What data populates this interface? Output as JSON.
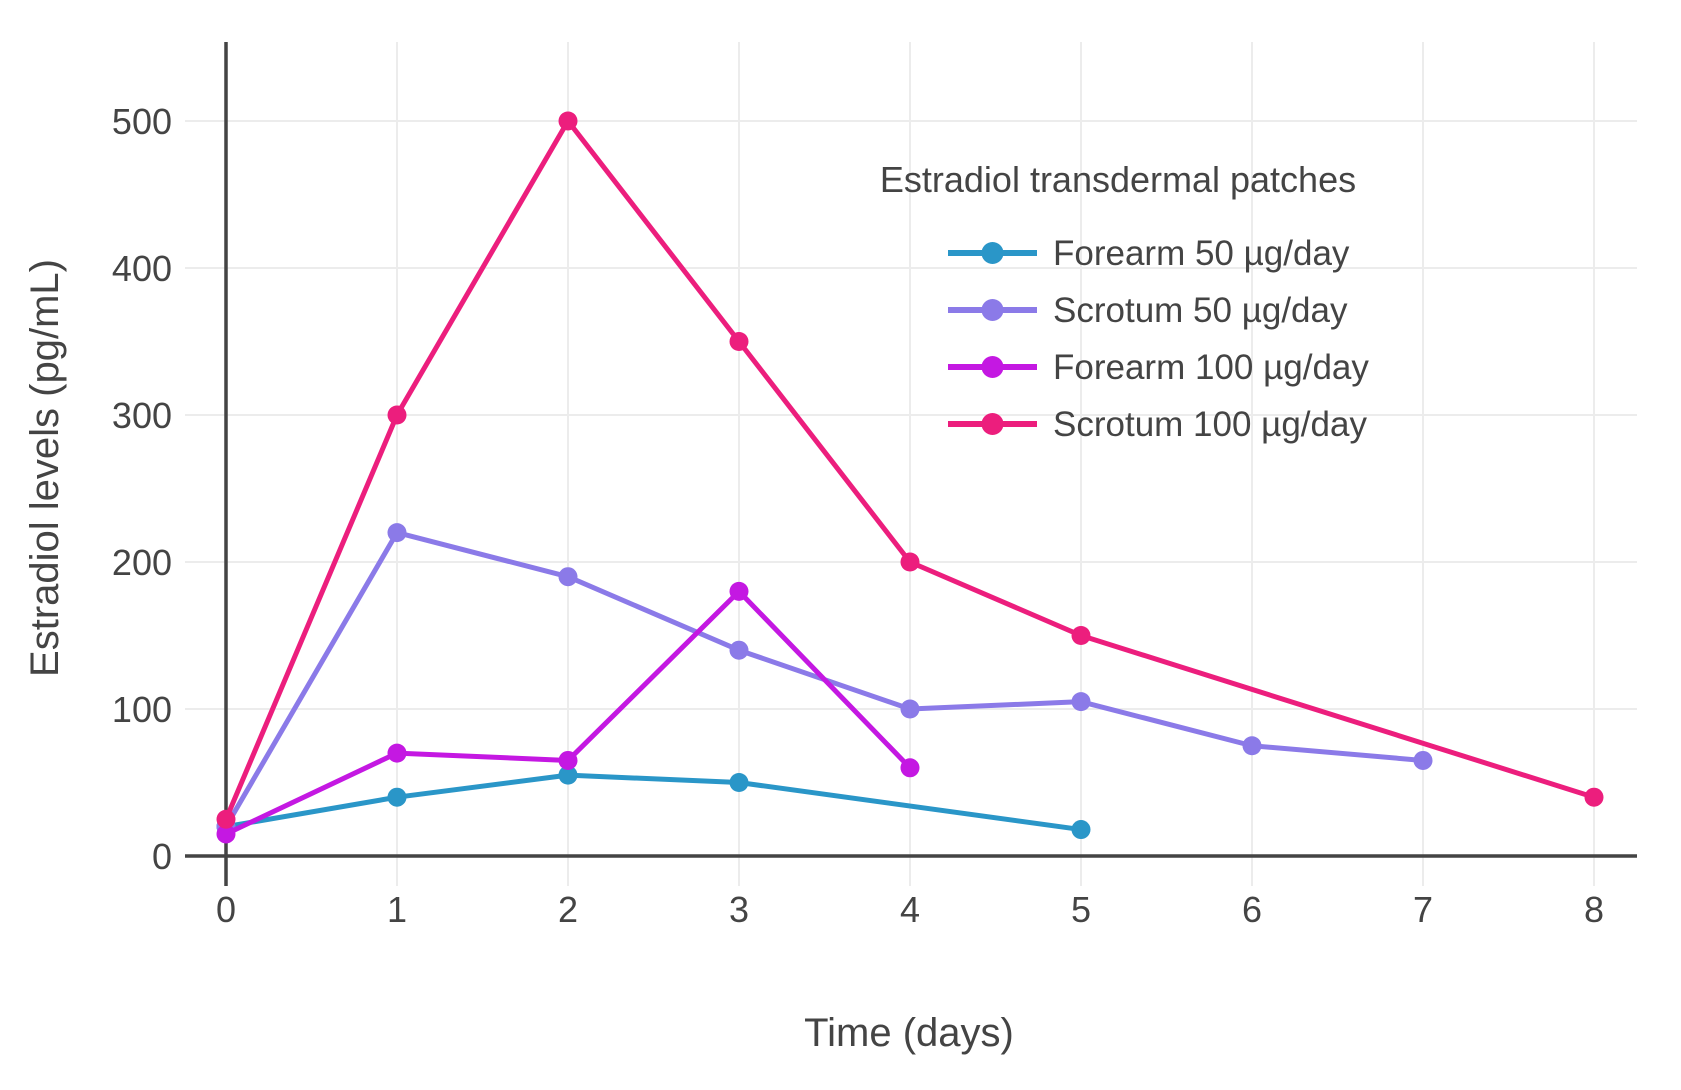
{
  "chart_data": {
    "type": "line",
    "legend_title": "Estradiol transdermal patches",
    "xlabel": "Time (days)",
    "ylabel": "Estradiol levels (pg/mL)",
    "xlim": [
      0,
      8
    ],
    "ylim": [
      0,
      500
    ],
    "x_ticks": [
      0,
      1,
      2,
      3,
      4,
      5,
      6,
      7,
      8
    ],
    "y_ticks": [
      0,
      100,
      200,
      300,
      400,
      500
    ],
    "grid": true,
    "legend_position": "inside-top-right",
    "series": [
      {
        "name": "Forearm 50 µg/day",
        "color": "#2A96C8",
        "x": [
          0,
          1,
          2,
          3,
          5
        ],
        "y": [
          20,
          40,
          55,
          50,
          18
        ]
      },
      {
        "name": "Scrotum 50 µg/day",
        "color": "#8B7AE8",
        "x": [
          0,
          1,
          2,
          3,
          4,
          5,
          6,
          7
        ],
        "y": [
          20,
          220,
          190,
          140,
          100,
          105,
          75,
          65
        ]
      },
      {
        "name": "Forearm 100 µg/day",
        "color": "#C418E2",
        "x": [
          0,
          1,
          2,
          3,
          4
        ],
        "y": [
          15,
          70,
          65,
          180,
          60
        ]
      },
      {
        "name": "Scrotum 100 µg/day",
        "color": "#EC1E7D",
        "x": [
          0,
          1,
          2,
          3,
          4,
          5,
          8
        ],
        "y": [
          25,
          300,
          500,
          350,
          200,
          150,
          40
        ]
      }
    ],
    "colors": {
      "axis": "#444444",
      "grid": "#ECECEC",
      "text": "#444444",
      "background": "#FFFFFF"
    }
  }
}
